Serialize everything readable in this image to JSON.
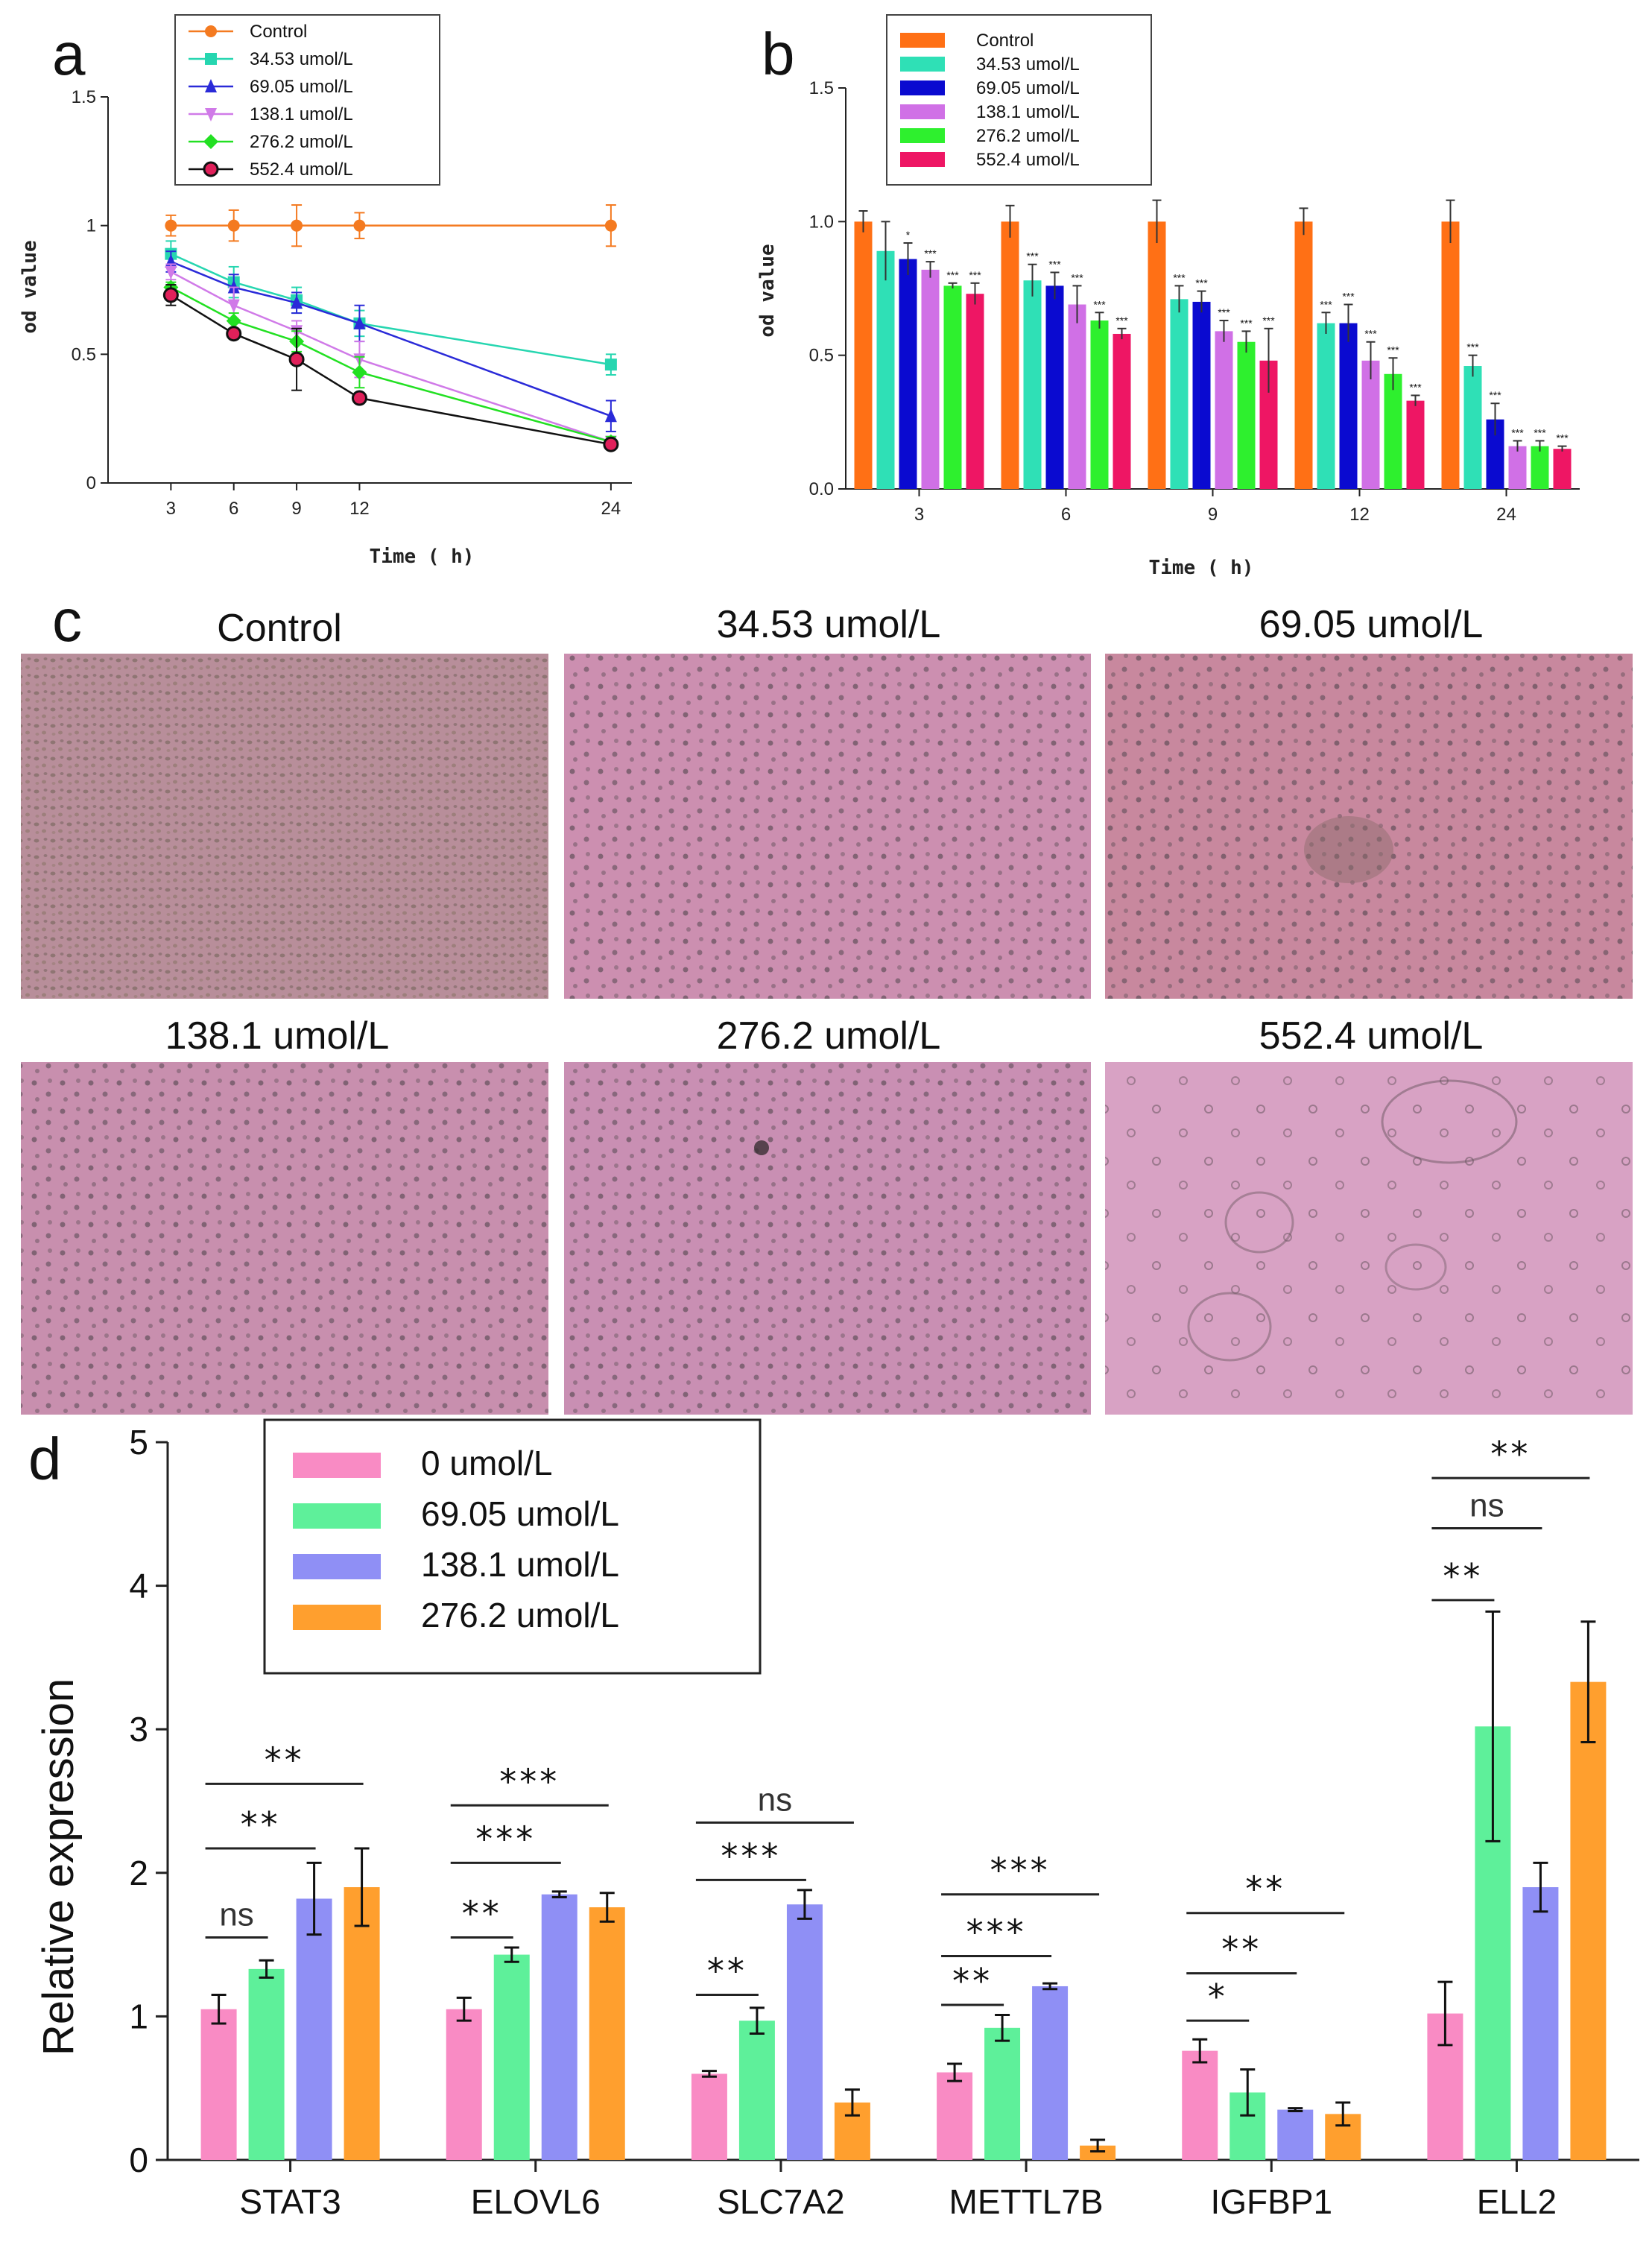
{
  "panel_labels": {
    "a": "a",
    "b": "b",
    "c": "c",
    "d": "d"
  },
  "photo_titles": [
    "Control",
    "34.53 umol/L",
    "69.05 umol/L",
    "138.1 umol/L",
    "276.2 umol/L",
    "552.4  umol/L"
  ],
  "colors": {
    "a": [
      "#f47a20",
      "#26d6b0",
      "#2a2ad8",
      "#d07ae8",
      "#22e022",
      "#111111"
    ],
    "b": [
      "#ff7015",
      "#2fe0b6",
      "#0a0ad0",
      "#d070e6",
      "#2ef02e",
      "#ee1664"
    ],
    "d": [
      "#f98bc4",
      "#5ef09a",
      "#8f8ff5",
      "#ff9f2e"
    ],
    "photo_bg": [
      "#b88e9a",
      "#cc8fb0",
      "#c8889e",
      "#c88fae",
      "#c98fb3",
      "#d8a2c4"
    ]
  },
  "chart_data": [
    {
      "id": "a",
      "type": "line",
      "title": "",
      "xlabel": "Time ( h)",
      "ylabel": "od value",
      "x": [
        3,
        6,
        9,
        12,
        24
      ],
      "xticks": [
        "3",
        "6",
        "9",
        "12",
        "24"
      ],
      "xlim": [
        0,
        25
      ],
      "ylim": [
        0,
        1.5
      ],
      "yticks": [
        "0",
        "0.5",
        "1",
        "1.5"
      ],
      "legend_position": "top-left",
      "series": [
        {
          "name": "Control",
          "values": [
            1.0,
            1.0,
            1.0,
            1.0,
            1.0
          ],
          "err": [
            0.04,
            0.06,
            0.08,
            0.05,
            0.08
          ]
        },
        {
          "name": "34.53 umol/L",
          "values": [
            0.89,
            0.78,
            0.71,
            0.62,
            0.46
          ],
          "err": [
            0.05,
            0.06,
            0.05,
            0.05,
            0.04
          ]
        },
        {
          "name": "69.05 umol/L",
          "values": [
            0.86,
            0.76,
            0.7,
            0.62,
            0.26
          ],
          "err": [
            0.04,
            0.05,
            0.04,
            0.07,
            0.06
          ]
        },
        {
          "name": "138.1 umol/L",
          "values": [
            0.82,
            0.69,
            0.59,
            0.48,
            0.16
          ],
          "err": [
            0.03,
            0.07,
            0.04,
            0.07,
            0.02
          ]
        },
        {
          "name": "276.2 umol/L",
          "values": [
            0.76,
            0.63,
            0.55,
            0.43,
            0.16
          ],
          "err": [
            0.02,
            0.03,
            0.04,
            0.06,
            0.02
          ]
        },
        {
          "name": "552.4 umol/L",
          "values": [
            0.73,
            0.58,
            0.48,
            0.33,
            0.15
          ],
          "err": [
            0.04,
            0.02,
            0.12,
            0.02,
            0.01
          ]
        }
      ]
    },
    {
      "id": "b",
      "type": "bar",
      "title": "",
      "xlabel": "Time ( h)",
      "ylabel": "od value",
      "categories": [
        "3",
        "6",
        "9",
        "12",
        "24"
      ],
      "ylim": [
        0,
        1.5
      ],
      "yticks": [
        "0.0",
        "0.5",
        "1.0",
        "1.5"
      ],
      "legend_position": "top",
      "series": [
        {
          "name": "Control",
          "values": [
            1.0,
            1.0,
            1.0,
            1.0,
            1.0
          ],
          "err": [
            0.04,
            0.06,
            0.08,
            0.05,
            0.08
          ]
        },
        {
          "name": "34.53 umol/L",
          "values": [
            0.89,
            0.78,
            0.71,
            0.62,
            0.46
          ],
          "err": [
            0.11,
            0.06,
            0.05,
            0.04,
            0.04
          ]
        },
        {
          "name": "69.05 umol/L",
          "values": [
            0.86,
            0.76,
            0.7,
            0.62,
            0.26
          ],
          "err": [
            0.06,
            0.05,
            0.04,
            0.07,
            0.06
          ]
        },
        {
          "name": "138.1 umol/L",
          "values": [
            0.82,
            0.69,
            0.59,
            0.48,
            0.16
          ],
          "err": [
            0.03,
            0.07,
            0.04,
            0.07,
            0.02
          ]
        },
        {
          "name": "276.2 umol/L",
          "values": [
            0.76,
            0.63,
            0.55,
            0.43,
            0.16
          ],
          "err": [
            0.01,
            0.03,
            0.04,
            0.06,
            0.02
          ]
        },
        {
          "name": "552.4 umol/L",
          "values": [
            0.73,
            0.58,
            0.48,
            0.33,
            0.15
          ],
          "err": [
            0.04,
            0.02,
            0.12,
            0.02,
            0.01
          ]
        }
      ],
      "significance": [
        [
          "",
          "",
          "*",
          "***",
          "***",
          "***"
        ],
        [
          "",
          "***",
          "***",
          "***",
          "***",
          "***"
        ],
        [
          "",
          "***",
          "***",
          "***",
          "***",
          "***"
        ],
        [
          "",
          "***",
          "***",
          "***",
          "***",
          "***"
        ],
        [
          "",
          "***",
          "***",
          "***",
          "***",
          "***"
        ]
      ]
    },
    {
      "id": "d",
      "type": "bar",
      "title": "",
      "xlabel": "",
      "ylabel": "Relative expression",
      "categories": [
        "STAT3",
        "ELOVL6",
        "SLC7A2",
        "METTL7B",
        "IGFBP1",
        "ELL2"
      ],
      "ylim": [
        0,
        5
      ],
      "yticks": [
        "0",
        "1",
        "2",
        "3",
        "4",
        "5"
      ],
      "legend_position": "top-left",
      "series": [
        {
          "name": "0 umol/L",
          "values": [
            1.05,
            1.05,
            0.6,
            0.61,
            0.76,
            1.02
          ],
          "err": [
            0.1,
            0.08,
            0.02,
            0.06,
            0.08,
            0.22
          ]
        },
        {
          "name": "69.05 umol/L",
          "values": [
            1.33,
            1.43,
            0.97,
            0.92,
            0.47,
            3.02
          ],
          "err": [
            0.06,
            0.05,
            0.09,
            0.09,
            0.16,
            0.8
          ]
        },
        {
          "name": "138.1 umol/L",
          "values": [
            1.82,
            1.85,
            1.78,
            1.21,
            0.35,
            1.9
          ],
          "err": [
            0.25,
            0.02,
            0.1,
            0.02,
            0.01,
            0.17
          ]
        },
        {
          "name": "276.2 umol/L",
          "values": [
            1.9,
            1.76,
            0.4,
            0.1,
            0.32,
            3.33
          ],
          "err": [
            0.27,
            0.1,
            0.09,
            0.04,
            0.08,
            0.42
          ]
        }
      ],
      "comparisons": [
        {
          "group": 0,
          "a": 0,
          "b": 1,
          "level": 1.55,
          "label": "ns"
        },
        {
          "group": 0,
          "a": 0,
          "b": 2,
          "level": 2.17,
          "label": "**"
        },
        {
          "group": 0,
          "a": 0,
          "b": 3,
          "level": 2.62,
          "label": "**"
        },
        {
          "group": 1,
          "a": 0,
          "b": 1,
          "level": 1.55,
          "label": "**"
        },
        {
          "group": 1,
          "a": 0,
          "b": 2,
          "level": 2.07,
          "label": "***"
        },
        {
          "group": 1,
          "a": 0,
          "b": 3,
          "level": 2.47,
          "label": "***"
        },
        {
          "group": 2,
          "a": 0,
          "b": 1,
          "level": 1.15,
          "label": "**"
        },
        {
          "group": 2,
          "a": 0,
          "b": 2,
          "level": 1.95,
          "label": "***"
        },
        {
          "group": 2,
          "a": 0,
          "b": 3,
          "level": 2.35,
          "label": "ns"
        },
        {
          "group": 3,
          "a": 0,
          "b": 1,
          "level": 1.08,
          "label": "**"
        },
        {
          "group": 3,
          "a": 0,
          "b": 2,
          "level": 1.42,
          "label": "***"
        },
        {
          "group": 3,
          "a": 0,
          "b": 3,
          "level": 1.85,
          "label": "***"
        },
        {
          "group": 4,
          "a": 0,
          "b": 1,
          "level": 0.97,
          "label": "*"
        },
        {
          "group": 4,
          "a": 0,
          "b": 2,
          "level": 1.3,
          "label": "**"
        },
        {
          "group": 4,
          "a": 0,
          "b": 3,
          "level": 1.72,
          "label": "**"
        },
        {
          "group": 5,
          "a": 0,
          "b": 1,
          "level": 3.9,
          "label": "**"
        },
        {
          "group": 5,
          "a": 0,
          "b": 2,
          "level": 4.4,
          "label": "ns"
        },
        {
          "group": 5,
          "a": 0,
          "b": 3,
          "level": 4.75,
          "label": "**"
        }
      ]
    }
  ]
}
